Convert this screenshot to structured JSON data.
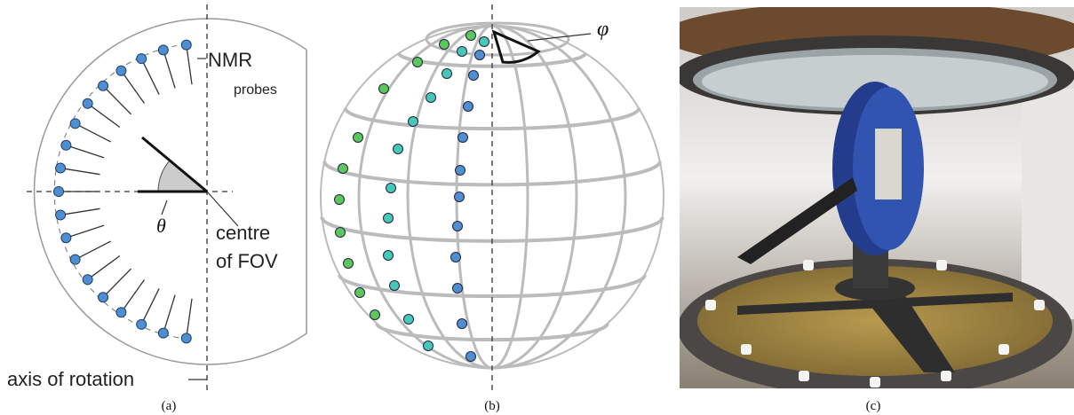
{
  "panel_a": {
    "nmr": "NMR",
    "probes": "probes",
    "theta": "θ",
    "centre": "centre",
    "of_fov": "of FOV",
    "axis": "axis of rotation",
    "caption": "(a)"
  },
  "panel_b": {
    "phi": "φ",
    "caption": "(b)"
  },
  "panel_c": {
    "caption": "(c)"
  }
}
